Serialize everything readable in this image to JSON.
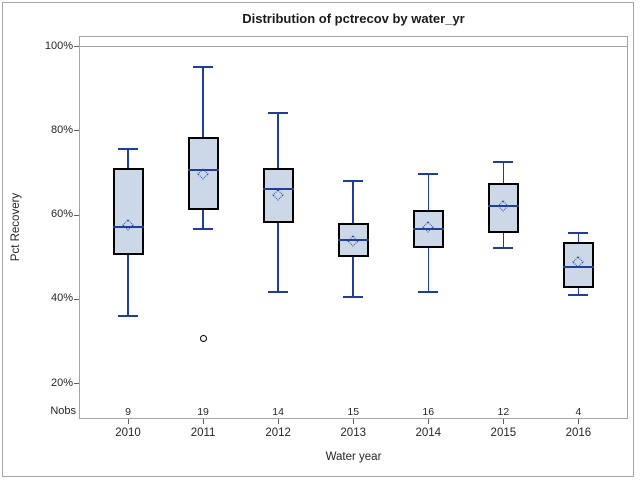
{
  "figure": {
    "title": "Distribution of pctrecov by water_yr",
    "xlabel": "Water year",
    "ylabel": "Pct Recovery",
    "nobs_label": "Nobs"
  },
  "chart_data": {
    "type": "box",
    "title": "Distribution of pctrecov by water_yr",
    "xlabel": "Water year",
    "ylabel": "Pct Recovery",
    "unit": "%",
    "y_tick_labels": [
      "100%",
      "80%",
      "60%",
      "40%",
      "20%"
    ],
    "y_tick_values": [
      100,
      80,
      60,
      40,
      20
    ],
    "ylim_ticks": [
      20,
      100
    ],
    "grid": "off",
    "reference_line_at": 100,
    "legend": "none",
    "categories": [
      "2010",
      "2011",
      "2012",
      "2013",
      "2014",
      "2015",
      "2016"
    ],
    "nobs_row_label": "Nobs",
    "nobs": [
      9,
      19,
      14,
      15,
      16,
      12,
      4
    ],
    "boxes": [
      {
        "category": "2010",
        "min": 36,
        "q1": 50.5,
        "median": 57,
        "mean": 57.5,
        "q3": 71,
        "max": 75.5,
        "outliers": []
      },
      {
        "category": "2011",
        "min": 56.5,
        "q1": 61,
        "median": 70.5,
        "mean": 69.5,
        "q3": 78.5,
        "max": 95,
        "outliers": [
          30.5
        ]
      },
      {
        "category": "2012",
        "min": 41.5,
        "q1": 58,
        "median": 66,
        "mean": 64.5,
        "q3": 71,
        "max": 84,
        "outliers": []
      },
      {
        "category": "2013",
        "min": 40.5,
        "q1": 50,
        "median": 54,
        "mean": 53.5,
        "q3": 58,
        "max": 68,
        "outliers": []
      },
      {
        "category": "2014",
        "min": 41.5,
        "q1": 52,
        "median": 56.5,
        "mean": 57,
        "q3": 61,
        "max": 69.5,
        "outliers": []
      },
      {
        "category": "2015",
        "min": 52,
        "q1": 55.5,
        "median": 62,
        "mean": 62,
        "q3": 67.5,
        "max": 72.5,
        "outliers": []
      },
      {
        "category": "2016",
        "min": 41,
        "q1": 42.5,
        "median": 47.5,
        "mean": 48.5,
        "q3": 53.5,
        "max": 55.5,
        "outliers": []
      }
    ]
  },
  "colors": {
    "box_fill": "#ccd7e8",
    "box_border": "#000000",
    "whisker": "#1f3d99",
    "mean_marker_outline": "#2653a5",
    "outlier": "#000000",
    "frame": "#a6a6a6",
    "text": "#262626"
  }
}
